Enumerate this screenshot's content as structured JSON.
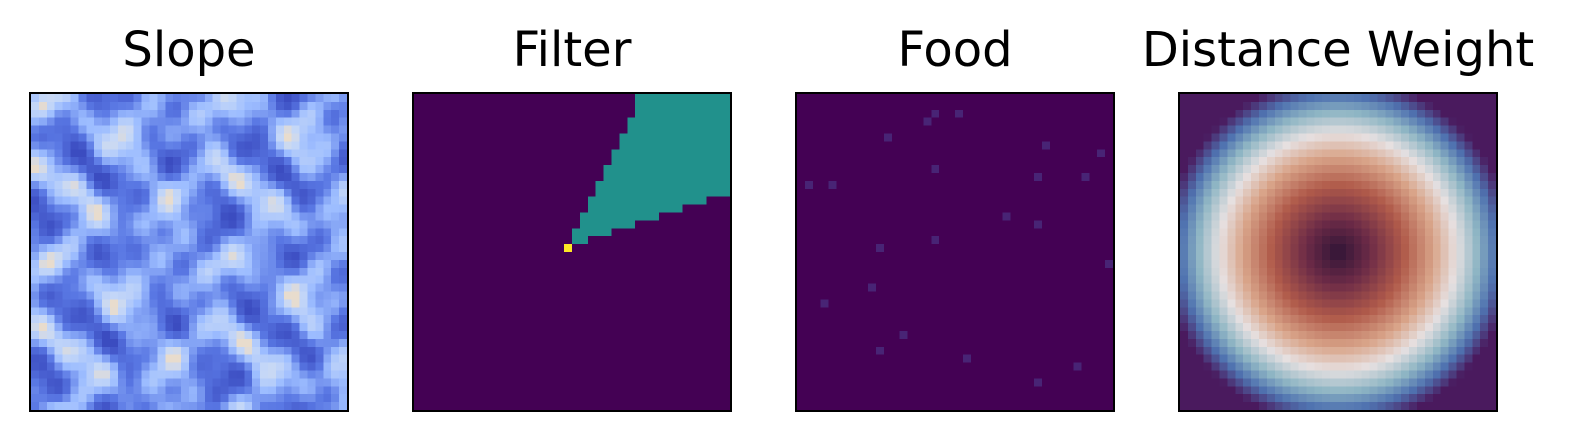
{
  "chart_data": [
    {
      "type": "heatmap",
      "title": "Slope",
      "colormap": "coolwarm-blue",
      "grid_size": 40,
      "axes_ticks": false
    },
    {
      "type": "heatmap",
      "title": "Filter",
      "colormap": "viridis",
      "grid_size": 40,
      "categories": [
        0,
        1,
        2
      ],
      "colors": [
        "#440154",
        "#21918c",
        "#fde725"
      ],
      "description_of_values": {
        "center_cell": [
          19,
          19
        ]
      },
      "axes_ticks": false
    },
    {
      "type": "heatmap",
      "title": "Food",
      "colormap": "viridis",
      "grid_size": 40,
      "sparse_cells": [
        [
          16,
          3
        ],
        [
          17,
          2
        ],
        [
          20,
          2
        ],
        [
          11,
          5
        ],
        [
          31,
          6
        ],
        [
          38,
          7
        ],
        [
          17,
          9
        ],
        [
          30,
          10
        ],
        [
          36,
          10
        ],
        [
          1,
          11
        ],
        [
          4,
          11
        ],
        [
          26,
          15
        ],
        [
          30,
          16
        ],
        [
          17,
          18
        ],
        [
          10,
          19
        ],
        [
          39,
          21
        ],
        [
          9,
          24
        ],
        [
          3,
          26
        ],
        [
          13,
          30
        ],
        [
          10,
          32
        ],
        [
          21,
          33
        ],
        [
          35,
          34
        ],
        [
          30,
          36
        ]
      ],
      "colors": [
        "#440154",
        "#482475"
      ],
      "axes_ticks": false
    },
    {
      "type": "heatmap",
      "title": "Distance Weight",
      "colormap": "twilight_shifted",
      "grid_size": 40,
      "axes_ticks": false
    }
  ]
}
